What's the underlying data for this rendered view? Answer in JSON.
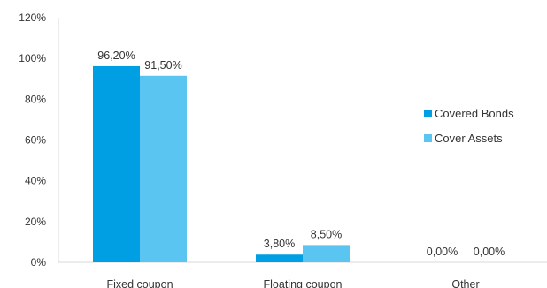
{
  "chart_data": {
    "type": "bar",
    "title": "",
    "xlabel": "",
    "ylabel": "",
    "categories": [
      "Fixed coupon",
      "Floating coupon",
      "Other"
    ],
    "series": [
      {
        "name": "Covered Bonds",
        "values": [
          96.2,
          3.8,
          0.0
        ],
        "labels": [
          "96,20%",
          "3,80%",
          "0,00%"
        ],
        "color": "#009FE3"
      },
      {
        "name": "Cover Assets",
        "values": [
          91.5,
          8.5,
          0.0
        ],
        "labels": [
          "91,50%",
          "8,50%",
          "0,00%"
        ],
        "color": "#5BC5F2"
      }
    ],
    "ylim": [
      0,
      120
    ],
    "yticks": [
      0,
      20,
      40,
      60,
      80,
      100,
      120
    ],
    "ytick_labels": [
      "0%",
      "20%",
      "40%",
      "60%",
      "80%",
      "100%",
      "120%"
    ],
    "grid": false,
    "legend_position": "right"
  }
}
